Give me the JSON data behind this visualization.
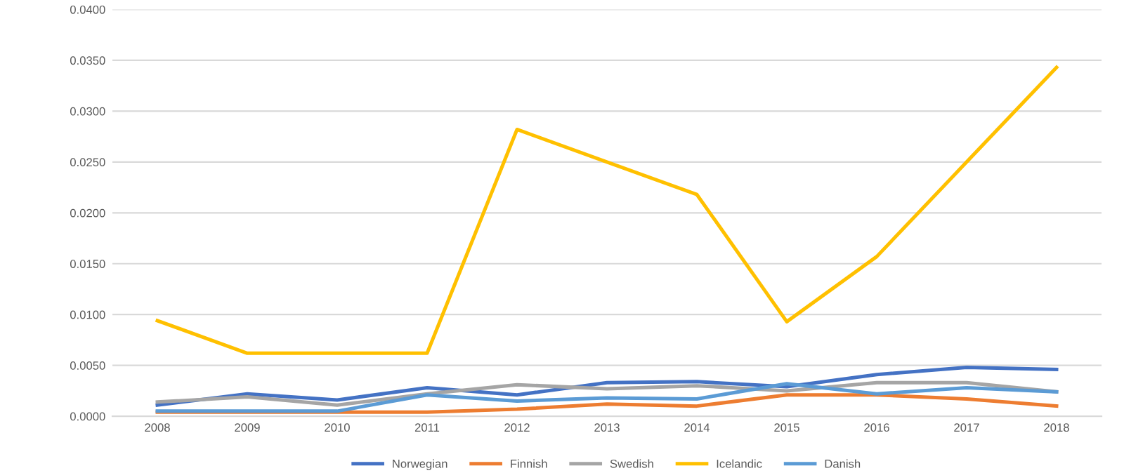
{
  "chart_data": {
    "type": "line",
    "categories": [
      "2008",
      "2009",
      "2010",
      "2011",
      "2012",
      "2013",
      "2014",
      "2015",
      "2016",
      "2017",
      "2018"
    ],
    "series": [
      {
        "name": "Norwegian",
        "color": "#4472c4",
        "values": [
          0.0011,
          0.0022,
          0.0016,
          0.0028,
          0.0021,
          0.0033,
          0.0034,
          0.0029,
          0.0041,
          0.0048,
          0.0046
        ]
      },
      {
        "name": "Finnish",
        "color": "#ed7d31",
        "values": [
          0.0004,
          0.0004,
          0.0004,
          0.0004,
          0.0007,
          0.0012,
          0.001,
          0.0021,
          0.0021,
          0.0017,
          0.001
        ]
      },
      {
        "name": "Swedish",
        "color": "#a5a5a5",
        "values": [
          0.0014,
          0.0019,
          0.0011,
          0.0022,
          0.0031,
          0.0027,
          0.003,
          0.0025,
          0.0033,
          0.0033,
          0.0024
        ]
      },
      {
        "name": "Icelandic",
        "color": "#ffc000",
        "values": [
          0.0094,
          0.0062,
          0.0062,
          0.0062,
          0.0282,
          0.025,
          0.0218,
          0.0093,
          0.0157,
          0.025,
          0.0343
        ]
      },
      {
        "name": "Danish",
        "color": "#5b9bd5",
        "values": [
          0.0005,
          0.0005,
          0.0005,
          0.0021,
          0.0015,
          0.0018,
          0.0017,
          0.0032,
          0.0022,
          0.0028,
          0.0024
        ]
      }
    ],
    "ylim": [
      0,
      0.04
    ],
    "yticks": [
      {
        "value": 0,
        "label": "0.0000"
      },
      {
        "value": 0.005,
        "label": "0.0050"
      },
      {
        "value": 0.01,
        "label": "0.0100"
      },
      {
        "value": 0.015,
        "label": "0.0150"
      },
      {
        "value": 0.02,
        "label": "0.0200"
      },
      {
        "value": 0.025,
        "label": "0.0250"
      },
      {
        "value": 0.03,
        "label": "0.0300"
      },
      {
        "value": 0.035,
        "label": "0.0350"
      },
      {
        "value": 0.04,
        "label": "0.0400"
      }
    ],
    "grid": "y",
    "legend": "bottom",
    "marker": "none",
    "line_style": "solid"
  }
}
